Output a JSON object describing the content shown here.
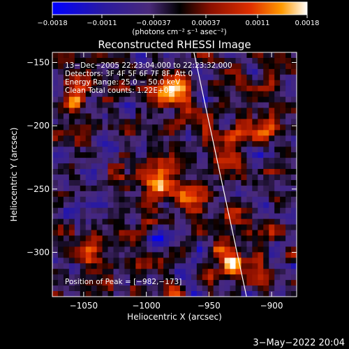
{
  "chart_data": {
    "type": "heatmap",
    "title": "Reconstructed RHESSI Image",
    "xlabel": "Heliocentric X (arcsec)",
    "ylabel": "Heliocentric Y (arcsec)",
    "xlim": [
      -1075,
      -880
    ],
    "ylim": [
      -335,
      -142
    ],
    "xticks": [
      {
        "value": -1050,
        "label": "−1050"
      },
      {
        "value": -1000,
        "label": "−1000"
      },
      {
        "value": -950,
        "label": "−950"
      },
      {
        "value": -900,
        "label": "−900"
      }
    ],
    "yticks": [
      {
        "value": -150,
        "label": "−150"
      },
      {
        "value": -200,
        "label": "−200"
      },
      {
        "value": -250,
        "label": "−250"
      },
      {
        "value": -300,
        "label": "−300"
      }
    ],
    "colorbar": {
      "min": -0.0018,
      "max": 0.0018,
      "tick_values": [
        -0.0018,
        -0.0011,
        -0.00037,
        0.00037,
        0.0011,
        0.0018
      ],
      "tick_labels": [
        "−0.0018",
        "−0.0011",
        "−0.00037",
        "0.00037",
        "0.0011",
        "0.0018"
      ],
      "unit_label": "(photons cm⁻² s⁻¹ asec⁻²)"
    },
    "annotations": [
      "13−Dec−2005 22:23:04.000 to 22:23:32.000",
      "Detectors: 3F 4F 5F 6F 7F 8F, Att 0",
      "Energy Range: 25.0 − 50.0 keV",
      "Clean     Total counts: 1.22E+03"
    ],
    "peak_label": "Position of Peak = [−982,−173]",
    "peak": {
      "x": -982,
      "y": -173
    },
    "hot_spots": [
      {
        "x": -982,
        "y": -173,
        "value": 0.0018
      },
      {
        "x": -928,
        "y": -308,
        "value": 0.0017
      },
      {
        "x": -1055,
        "y": -178,
        "value": 0.0012
      },
      {
        "x": -907,
        "y": -205,
        "value": 0.0012
      },
      {
        "x": -993,
        "y": -245,
        "value": 0.0011
      },
      {
        "x": -940,
        "y": -225,
        "value": 0.001
      },
      {
        "x": -962,
        "y": -258,
        "value": 0.0009
      },
      {
        "x": -1048,
        "y": -300,
        "value": 0.0009
      }
    ],
    "limb_line": [
      {
        "x": -962,
        "y": -142
      },
      {
        "x": -920,
        "y": -335
      }
    ],
    "grid": false
  },
  "footer": {
    "timestamp": "3−May−2022 20:04"
  }
}
